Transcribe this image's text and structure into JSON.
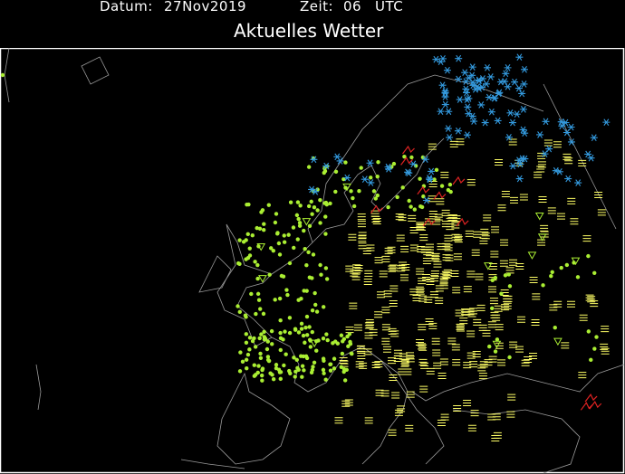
{
  "header": {
    "date_label": "Datum:",
    "date_value": "27Nov2019",
    "time_label": "Zeit:",
    "time_value": "06",
    "time_unit": "UTC",
    "title": "Aktuelles Wetter"
  },
  "map": {
    "region": "Europe",
    "symbols": [
      {
        "type": "rain-dots",
        "color": "#aaee33"
      },
      {
        "type": "fog-bars",
        "color": "#ffff66"
      },
      {
        "type": "snow-asterisk",
        "color": "#3399dd"
      },
      {
        "type": "thunderstorm",
        "color": "#dd2222"
      },
      {
        "type": "shower-triangle",
        "color": "#aaee33"
      }
    ],
    "colors": {
      "background": "#000000",
      "coastline": "#9a9a9a",
      "frame": "#ffffff"
    }
  }
}
